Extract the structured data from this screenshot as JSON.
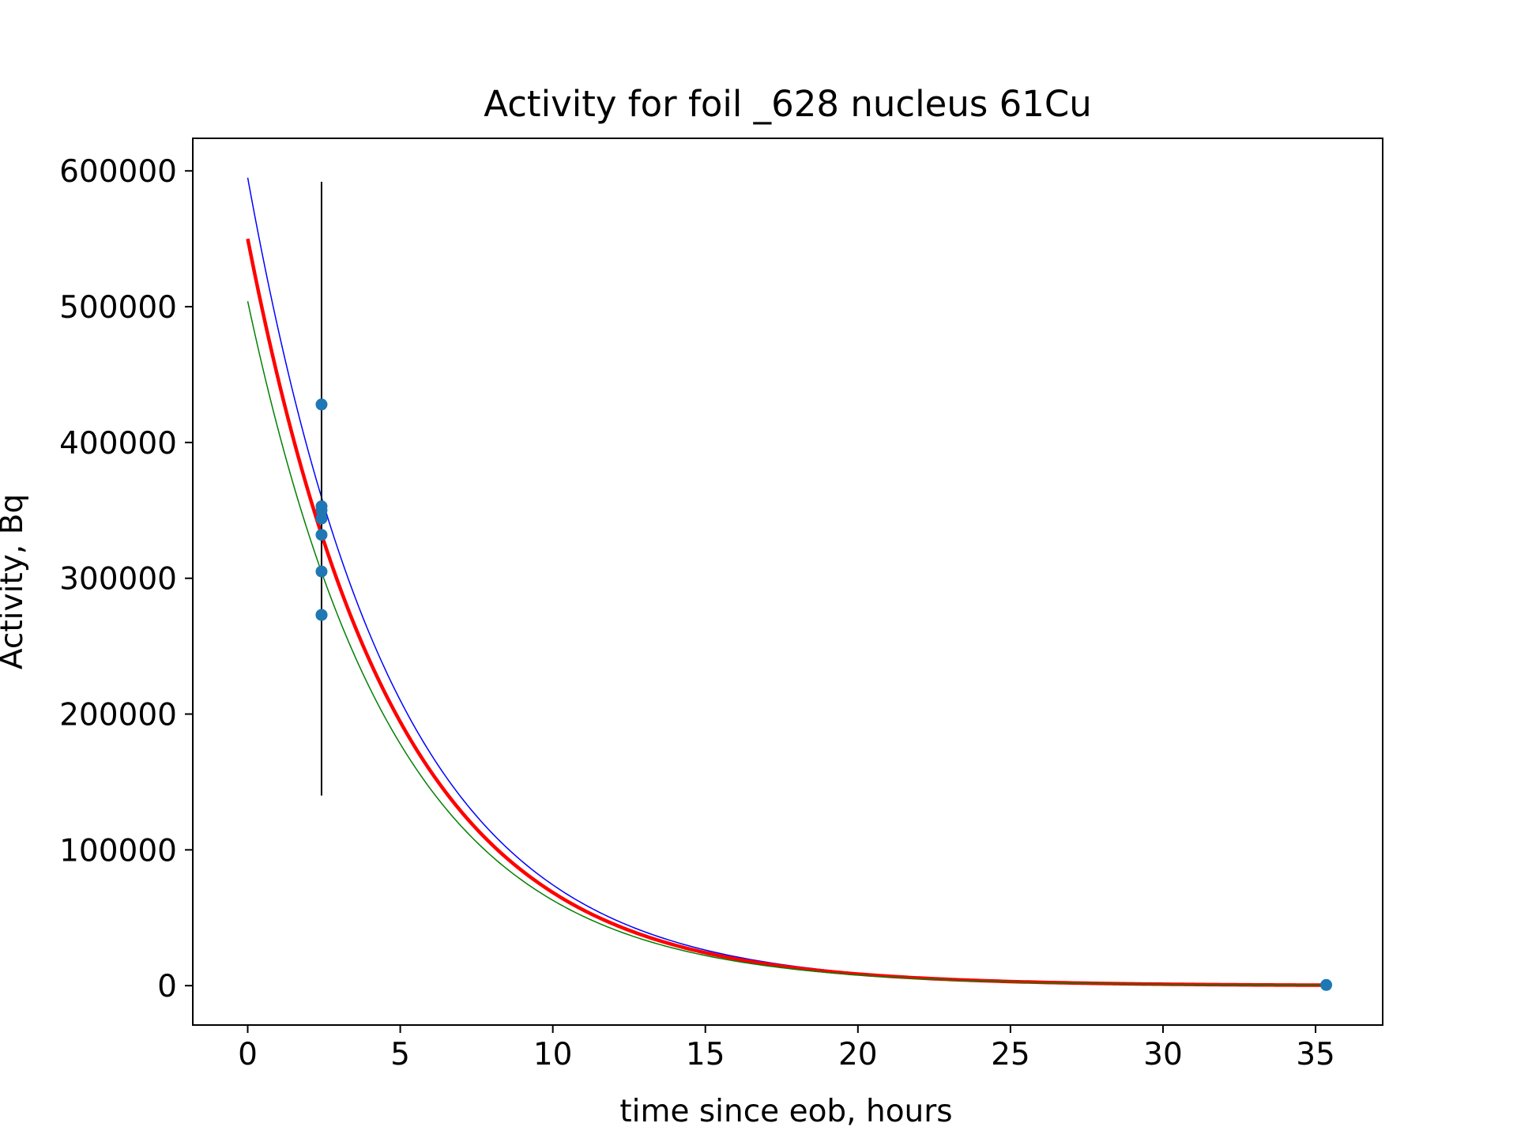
{
  "chart_data": {
    "type": "scatter",
    "title": "Activity for foil _628 nucleus 61Cu",
    "xlabel": "time since eob, hours",
    "ylabel": "Activity, Bq",
    "xlim": [
      -1.8,
      37.2
    ],
    "ylim": [
      -29000,
      624000
    ],
    "xticks": [
      0,
      5,
      10,
      15,
      20,
      25,
      30,
      35
    ],
    "yticks": [
      0,
      100000,
      200000,
      300000,
      400000,
      500000,
      600000
    ],
    "grid": false,
    "legend": "none",
    "points": {
      "color": "#1f77b4",
      "x": [
        2.42,
        2.42,
        2.42,
        2.42,
        2.42,
        2.42,
        2.42,
        2.42,
        35.35
      ],
      "y": [
        428000,
        353000,
        350000,
        344000,
        332000,
        305000,
        273000,
        273000,
        500
      ]
    },
    "error_bar": {
      "color": "#000000",
      "x": 2.42,
      "y_low": 140000,
      "y_high": 592000
    },
    "series": [
      {
        "color": "#0000ff",
        "line_width": "thin",
        "a0": 595000,
        "half_life_hours": 3.33,
        "x_range": [
          0,
          35.35
        ]
      },
      {
        "color": "#ff0000",
        "line_width": "thick",
        "a0": 550000,
        "half_life_hours": 3.33,
        "x_range": [
          0,
          35.35
        ]
      },
      {
        "color": "#008000",
        "line_width": "thin",
        "a0": 504000,
        "half_life_hours": 3.33,
        "x_range": [
          0,
          35.35
        ]
      }
    ]
  }
}
